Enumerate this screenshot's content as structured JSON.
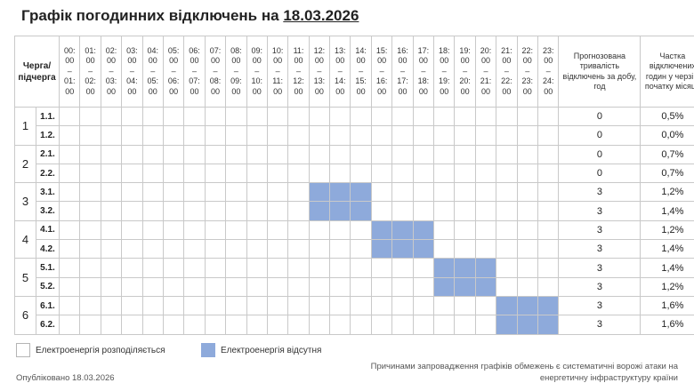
{
  "title": {
    "prefix": "Графік погодинних відключень на",
    "date": "18.03.2026"
  },
  "header": {
    "queue_label": "Черга/ підчерга",
    "hours": [
      {
        "start": "00:",
        "start_min": "00",
        "end": "01:",
        "end_min": "00"
      },
      {
        "start": "01:",
        "start_min": "00",
        "end": "02:",
        "end_min": "00"
      },
      {
        "start": "02:",
        "start_min": "00",
        "end": "03:",
        "end_min": "00"
      },
      {
        "start": "03:",
        "start_min": "00",
        "end": "04:",
        "end_min": "00"
      },
      {
        "start": "04:",
        "start_min": "00",
        "end": "05:",
        "end_min": "00"
      },
      {
        "start": "05:",
        "start_min": "00",
        "end": "06:",
        "end_min": "00"
      },
      {
        "start": "06:",
        "start_min": "00",
        "end": "07:",
        "end_min": "00"
      },
      {
        "start": "07:",
        "start_min": "00",
        "end": "08:",
        "end_min": "00"
      },
      {
        "start": "08:",
        "start_min": "00",
        "end": "09:",
        "end_min": "00"
      },
      {
        "start": "09:",
        "start_min": "00",
        "end": "10:",
        "end_min": "00"
      },
      {
        "start": "10:",
        "start_min": "00",
        "end": "11:",
        "end_min": "00"
      },
      {
        "start": "11:",
        "start_min": "00",
        "end": "12:",
        "end_min": "00"
      },
      {
        "start": "12:",
        "start_min": "00",
        "end": "13:",
        "end_min": "00"
      },
      {
        "start": "13:",
        "start_min": "00",
        "end": "14:",
        "end_min": "00"
      },
      {
        "start": "14:",
        "start_min": "00",
        "end": "15:",
        "end_min": "00"
      },
      {
        "start": "15:",
        "start_min": "00",
        "end": "16:",
        "end_min": "00"
      },
      {
        "start": "16:",
        "start_min": "00",
        "end": "17:",
        "end_min": "00"
      },
      {
        "start": "17:",
        "start_min": "00",
        "end": "18:",
        "end_min": "00"
      },
      {
        "start": "18:",
        "start_min": "00",
        "end": "19:",
        "end_min": "00"
      },
      {
        "start": "19:",
        "start_min": "00",
        "end": "20:",
        "end_min": "00"
      },
      {
        "start": "20:",
        "start_min": "00",
        "end": "21:",
        "end_min": "00"
      },
      {
        "start": "21:",
        "start_min": "00",
        "end": "22:",
        "end_min": "00"
      },
      {
        "start": "22:",
        "start_min": "00",
        "end": "23:",
        "end_min": "00"
      },
      {
        "start": "23:",
        "start_min": "00",
        "end": "24:",
        "end_min": "00"
      }
    ],
    "hour_dash": "–",
    "predicted_label": "Прогнозована тривалість відключень за добу, год",
    "share_label": "Частка відключених годин у черзі з початку місяця"
  },
  "colors": {
    "outage": "#8eaadb",
    "grid_border": "#c9c9c9"
  },
  "groups": [
    {
      "label": "1",
      "subs": [
        {
          "label": "1.1.",
          "off_hours": [],
          "predicted": "0",
          "share": "0,5%"
        },
        {
          "label": "1.2.",
          "off_hours": [],
          "predicted": "0",
          "share": "0,0%"
        }
      ]
    },
    {
      "label": "2",
      "subs": [
        {
          "label": "2.1.",
          "off_hours": [],
          "predicted": "0",
          "share": "0,7%"
        },
        {
          "label": "2.2.",
          "off_hours": [],
          "predicted": "0",
          "share": "0,7%"
        }
      ]
    },
    {
      "label": "3",
      "subs": [
        {
          "label": "3.1.",
          "off_hours": [
            12,
            13,
            14
          ],
          "predicted": "3",
          "share": "1,2%"
        },
        {
          "label": "3.2.",
          "off_hours": [
            12,
            13,
            14
          ],
          "predicted": "3",
          "share": "1,4%"
        }
      ]
    },
    {
      "label": "4",
      "subs": [
        {
          "label": "4.1.",
          "off_hours": [
            15,
            16,
            17
          ],
          "predicted": "3",
          "share": "1,2%"
        },
        {
          "label": "4.2.",
          "off_hours": [
            15,
            16,
            17
          ],
          "predicted": "3",
          "share": "1,4%"
        }
      ]
    },
    {
      "label": "5",
      "subs": [
        {
          "label": "5.1.",
          "off_hours": [
            18,
            19,
            20
          ],
          "predicted": "3",
          "share": "1,4%"
        },
        {
          "label": "5.2.",
          "off_hours": [
            18,
            19,
            20
          ],
          "predicted": "3",
          "share": "1,2%"
        }
      ]
    },
    {
      "label": "6",
      "subs": [
        {
          "label": "6.1.",
          "off_hours": [
            21,
            22,
            23
          ],
          "predicted": "3",
          "share": "1,6%"
        },
        {
          "label": "6.2.",
          "off_hours": [
            21,
            22,
            23
          ],
          "predicted": "3",
          "share": "1,6%"
        }
      ]
    }
  ],
  "legend": {
    "on_label": "Електроенергія розподіляється",
    "off_label": "Електроенергія відсутня"
  },
  "footer": {
    "published": "Опубліковано 18.03.2026",
    "note": "Причинами запровадження графіків обмежень є систематичні ворожі атаки на енергетичну інфраструктуру країни"
  }
}
